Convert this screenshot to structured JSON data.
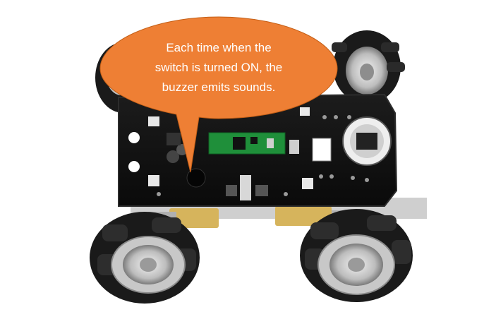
{
  "callout": {
    "lines": [
      "Each time when the",
      "switch is turned ON, the",
      "buzzer emits sounds."
    ],
    "fill_color": "#ee7f34",
    "text_color": "#ffffff"
  },
  "robot": {
    "board_color": "#141414",
    "board_edge_color": "#2c2c2c",
    "pico_color": "#1f8f3a",
    "wheel_hub_color": "#c8c8c8",
    "wheel_roller_color": "#1a1a1a",
    "motor_color": "#d6b45c"
  }
}
